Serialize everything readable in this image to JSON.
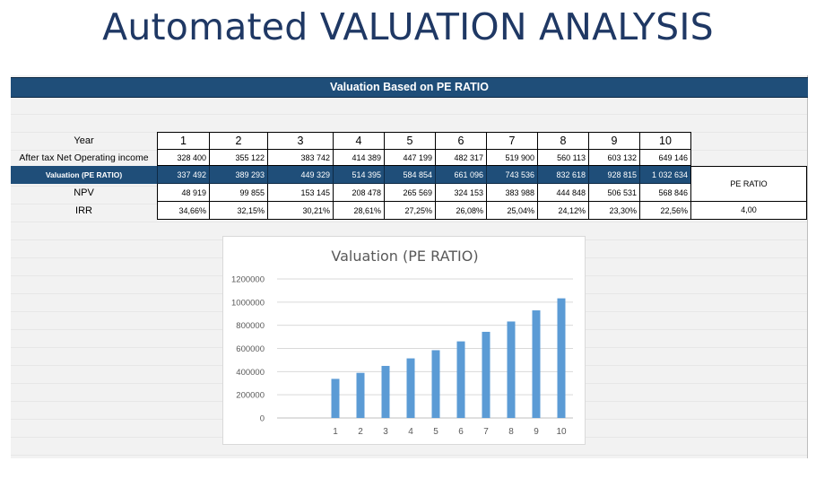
{
  "page": {
    "title": "Automated VALUATION ANALYSIS",
    "banner": "Valuation Based on PE RATIO"
  },
  "table": {
    "row_labels": {
      "year": "Year",
      "income": "After tax Net Operating income",
      "valuation": "Valuation (PE RATIO)",
      "npv": "NPV",
      "irr": "IRR"
    },
    "years": [
      "1",
      "2",
      "3",
      "4",
      "5",
      "6",
      "7",
      "8",
      "9",
      "10"
    ],
    "income": [
      "328 400",
      "355 122",
      "383 742",
      "414 389",
      "447 199",
      "482 317",
      "519 900",
      "560 113",
      "603 132",
      "649 146"
    ],
    "valuation": [
      "337 492",
      "389 293",
      "449 329",
      "514 395",
      "584 854",
      "661 096",
      "743 536",
      "832 618",
      "928 815",
      "1 032 634"
    ],
    "npv": [
      "48 919",
      "99 855",
      "153 145",
      "208 478",
      "265 569",
      "324 153",
      "383 988",
      "444 848",
      "506 531",
      "568 846"
    ],
    "irr": [
      "34,66%",
      "32,15%",
      "30,21%",
      "28,61%",
      "27,25%",
      "26,08%",
      "25,04%",
      "24,12%",
      "23,30%",
      "22,56%"
    ],
    "pe_ratio_label": "PE RATIO",
    "pe_ratio_value": "4,00"
  },
  "chart_data": {
    "type": "bar",
    "title": "Valuation (PE RATIO)",
    "categories": [
      "1",
      "2",
      "3",
      "4",
      "5",
      "6",
      "7",
      "8",
      "9",
      "10"
    ],
    "values": [
      337492,
      389293,
      449329,
      514395,
      584854,
      661096,
      743536,
      832618,
      928815,
      1032634
    ],
    "yticks": [
      "1200000",
      "1000000",
      "800000",
      "600000",
      "400000",
      "200000",
      "0"
    ],
    "ylim": [
      0,
      1200000
    ],
    "grid": true,
    "bar_color": "#5b9bd5",
    "xlabel": "",
    "ylabel": ""
  },
  "colors": {
    "title": "#1f3864",
    "banner": "#1f4e79",
    "bar": "#5b9bd5"
  }
}
